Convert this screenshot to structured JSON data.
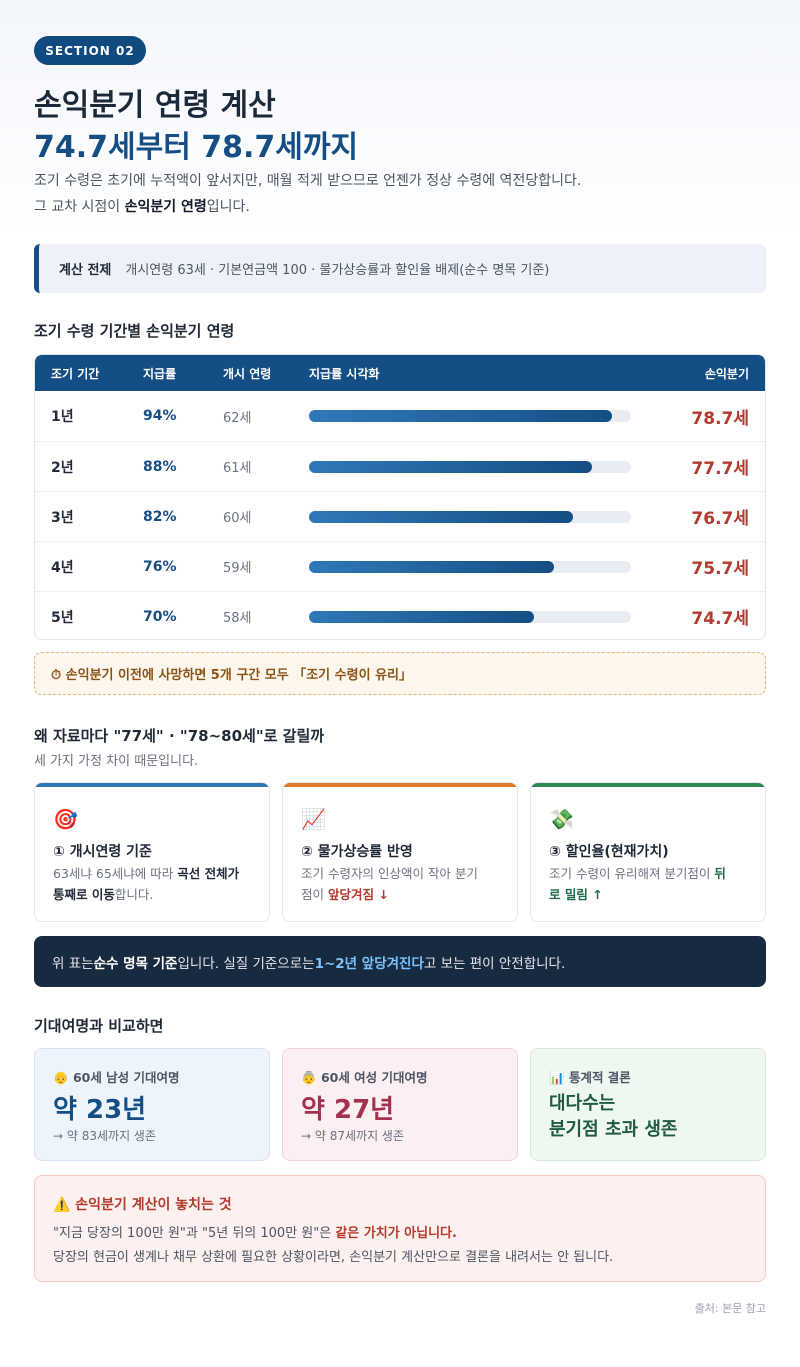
{
  "badge": "SECTION 02",
  "title": {
    "line1": "손익분기 연령 계산",
    "line2": "74.7세부터 78.7세까지"
  },
  "lead": {
    "line1": "조기 수령은 초기에 누적액이 앞서지만, 매월 적게 받으므로 언젠가 정상 수령에 역전당합니다.",
    "line2_pre": "그 교차 시점이 ",
    "line2_bold": "손익분기 연령",
    "line2_post": "입니다."
  },
  "premise": {
    "label": "계산 전제",
    "text": "개시연령 63세 · 기본연금액 100 · 물가상승률과 할인율 배제(순수 명목 기준)"
  },
  "table_title": "조기 수령 기간별 손익분기 연령",
  "table": {
    "headers": [
      "조기 기간",
      "지급률",
      "개시 연령",
      "지급률 시각화",
      "손익분기"
    ],
    "rows": [
      {
        "period": "1년",
        "rate": "94%",
        "rate_value": 94,
        "age": "62세",
        "breakeven": "78.7세"
      },
      {
        "period": "2년",
        "rate": "88%",
        "rate_value": 88,
        "age": "61세",
        "breakeven": "77.7세"
      },
      {
        "period": "3년",
        "rate": "82%",
        "rate_value": 82,
        "age": "60세",
        "breakeven": "76.7세"
      },
      {
        "period": "4년",
        "rate": "76%",
        "rate_value": 76,
        "age": "59세",
        "breakeven": "75.7세"
      },
      {
        "period": "5년",
        "rate": "70%",
        "rate_value": 70,
        "age": "58세",
        "breakeven": "74.7세"
      }
    ]
  },
  "note": "⏱ 손익분기 이전에 사망하면 5개 구간 모두 「조기 수령이 유리」",
  "why": {
    "title": "왜 자료마다 \"77세\" · \"78~80세\"로 갈릴까",
    "subtitle": "세 가지 가정 차이 때문입니다.",
    "cards": [
      {
        "icon": "🎯",
        "title": "① 개시연령 기준",
        "d1": "63세냐 65세냐에 따라 ",
        "d_bold1": "곡선 전체가",
        "d2": "",
        "d_bold2": "통째로 이동",
        "d3": "합니다.",
        "color": "#2f78b7"
      },
      {
        "icon": "📈",
        "title": "② 물가상승률 반영",
        "d1": "조기 수령자의 인상액이 작아 분기",
        "d2": "점이 ",
        "d_hl": "앞당겨짐 ↓",
        "color": "#e07a2e"
      },
      {
        "icon": "💸",
        "title": "③ 할인율(현재가치)",
        "d1": "조기 수령이 유리해져 분기점이 ",
        "d_hl1": "뒤",
        "d_hl2": "로 밀림 ↑",
        "color": "#2e8b57"
      }
    ]
  },
  "dark_note": {
    "pre": "위 표는 ",
    "bold": "순수 명목 기준",
    "mid": "입니다. 실질 기준으로는 ",
    "hl": "1~2년 앞당겨진다",
    "post": "고 보는 편이 안전합니다."
  },
  "compare": {
    "title": "기대여명과 비교하면",
    "cards": [
      {
        "icon": "👴",
        "label": "60세 남성 기대여명",
        "value": "약 23년",
        "foot": "→ 약 83세까지 생존",
        "color": "#154e85"
      },
      {
        "icon": "👵",
        "label": "60세 여성 기대여명",
        "value": "약 27년",
        "foot": "→ 약 87세까지 생존",
        "color": "#a3324f"
      },
      {
        "icon": "📊",
        "label": "통계적 결론",
        "line1": "대다수는",
        "line2": "분기점 초과 생존"
      }
    ]
  },
  "warning": {
    "title": "⚠️ 손익분기 계산이 놓치는 것",
    "l1_pre": "\"지금 당장의 100만 원\"과 \"5년 뒤의 100만 원\"은 ",
    "l1_bold": "같은 가치가 아닙니다.",
    "l2": "당장의 현금이 생계나 채무 상환에 필요한 상황이라면, 손익분기 계산만으로 결론을 내려서는 안 됩니다."
  },
  "source": "출처: 본문 참고"
}
